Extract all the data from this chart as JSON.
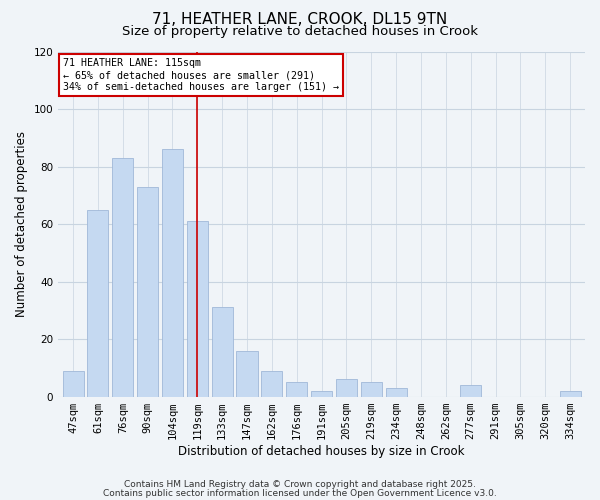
{
  "title": "71, HEATHER LANE, CROOK, DL15 9TN",
  "subtitle": "Size of property relative to detached houses in Crook",
  "xlabel": "Distribution of detached houses by size in Crook",
  "ylabel": "Number of detached properties",
  "bar_labels": [
    "47sqm",
    "61sqm",
    "76sqm",
    "90sqm",
    "104sqm",
    "119sqm",
    "133sqm",
    "147sqm",
    "162sqm",
    "176sqm",
    "191sqm",
    "205sqm",
    "219sqm",
    "234sqm",
    "248sqm",
    "262sqm",
    "277sqm",
    "291sqm",
    "305sqm",
    "320sqm",
    "334sqm"
  ],
  "bar_values": [
    9,
    65,
    83,
    73,
    86,
    61,
    31,
    16,
    9,
    5,
    2,
    6,
    5,
    3,
    0,
    0,
    4,
    0,
    0,
    0,
    2
  ],
  "bar_color": "#c5d9f1",
  "bar_edge_color": "#a0b8d8",
  "vline_x": 5,
  "vline_color": "#cc0000",
  "ylim": [
    0,
    120
  ],
  "annotation_text": "71 HEATHER LANE: 115sqm\n← 65% of detached houses are smaller (291)\n34% of semi-detached houses are larger (151) →",
  "annotation_box_color": "white",
  "annotation_box_edge": "#cc0000",
  "footer1": "Contains HM Land Registry data © Crown copyright and database right 2025.",
  "footer2": "Contains public sector information licensed under the Open Government Licence v3.0.",
  "bg_color": "#f0f4f8",
  "grid_color": "#c8d4e0",
  "title_fontsize": 11,
  "subtitle_fontsize": 9.5,
  "label_fontsize": 8.5,
  "tick_fontsize": 7.5,
  "footer_fontsize": 6.5
}
